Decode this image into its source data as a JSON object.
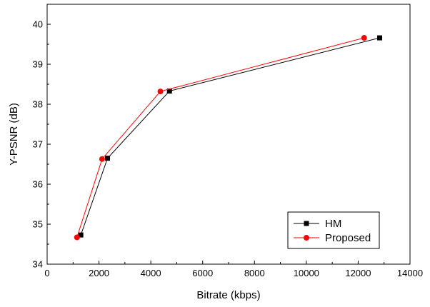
{
  "chart_data": {
    "type": "line",
    "xlabel": "Bitrate (kbps)",
    "ylabel": "Y-PSNR (dB)",
    "xlim": [
      0,
      14000
    ],
    "ylim": [
      34,
      40.5
    ],
    "x_ticks": [
      0,
      2000,
      4000,
      6000,
      8000,
      10000,
      12000,
      14000
    ],
    "y_ticks": [
      34,
      35,
      36,
      37,
      38,
      39,
      40
    ],
    "grid": false,
    "legend_position": "bottom-right",
    "series": [
      {
        "name": "HM",
        "color": "#000000",
        "marker": "square",
        "points": [
          {
            "x": 1300,
            "y": 34.73
          },
          {
            "x": 2330,
            "y": 36.65
          },
          {
            "x": 4720,
            "y": 38.33
          },
          {
            "x": 12830,
            "y": 39.66
          }
        ]
      },
      {
        "name": "Proposed",
        "color": "#ff0000",
        "marker": "circle",
        "points": [
          {
            "x": 1150,
            "y": 34.67
          },
          {
            "x": 2120,
            "y": 36.63
          },
          {
            "x": 4370,
            "y": 38.32
          },
          {
            "x": 12230,
            "y": 39.66
          }
        ]
      }
    ]
  }
}
